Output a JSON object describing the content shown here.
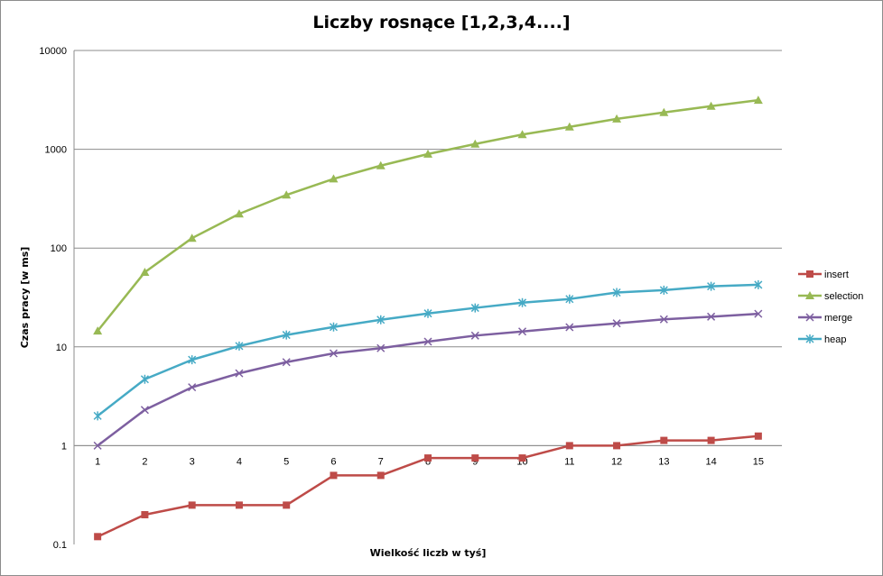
{
  "chart_data": {
    "type": "line",
    "title": "Liczby rosnące [1,2,3,4....]",
    "xlabel": "Wielkość liczb w tyś]",
    "ylabel": "Czas pracy [w ms]",
    "yscale": "log",
    "ylim": [
      0.1,
      10000
    ],
    "y_ticks": [
      "0.1",
      "1",
      "10",
      "100",
      "1000",
      "10000"
    ],
    "categories": [
      "1",
      "2",
      "3",
      "4",
      "5",
      "6",
      "7",
      "8",
      "9",
      "10",
      "11",
      "12",
      "13",
      "14",
      "15"
    ],
    "grid": true,
    "legend_position": "right",
    "series": [
      {
        "name": "insert",
        "color": "#be4b48",
        "marker": "square",
        "values": [
          0.12,
          0.2,
          0.25,
          0.25,
          0.25,
          0.5,
          0.5,
          0.75,
          0.75,
          0.75,
          1,
          1,
          1.13,
          1.13,
          1.25
        ]
      },
      {
        "name": "selection",
        "color": "#98b954",
        "marker": "triangle",
        "values": [
          14.5,
          57,
          126,
          222,
          345,
          502,
          683,
          895,
          1130,
          1410,
          1685,
          2030,
          2360,
          2730,
          3140
        ]
      },
      {
        "name": "merge",
        "color": "#7d5fa0",
        "marker": "x",
        "values": [
          1,
          2.3,
          3.9,
          5.4,
          7,
          8.6,
          9.7,
          11.3,
          13,
          14.3,
          15.8,
          17.3,
          19,
          20.2,
          21.6
        ]
      },
      {
        "name": "heap",
        "color": "#46aac5",
        "marker": "asterisk",
        "values": [
          2,
          4.7,
          7.4,
          10.2,
          13.2,
          15.9,
          18.8,
          21.8,
          24.8,
          28,
          30.5,
          35.5,
          37.5,
          41,
          42.5
        ]
      }
    ]
  }
}
